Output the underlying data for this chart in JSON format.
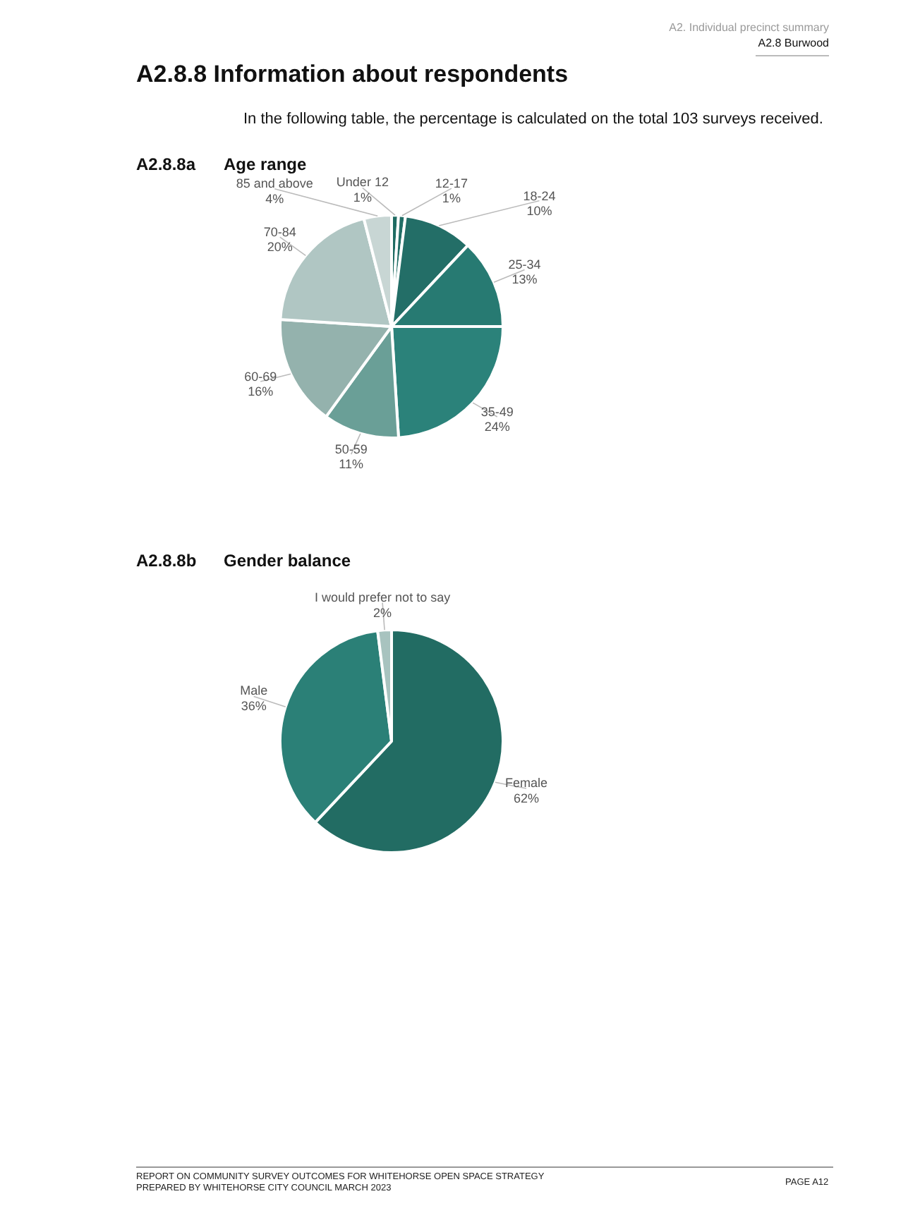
{
  "chart_data": [
    {
      "type": "pie",
      "title": "A2.8.8a Age range",
      "annotations": [
        "A2. Individual precinct summary",
        "A2.8 Burwood",
        "A2.8.8 Information about respondents",
        "In the following table, the percentage is calculated on the total 103 surveys received."
      ],
      "categories": [
        "Under 12",
        "12-17",
        "18-24",
        "25-34",
        "35-49",
        "50-59",
        "60-69",
        "70-84",
        "85 and above"
      ],
      "values": [
        1,
        1,
        10,
        13,
        24,
        11,
        16,
        20,
        4
      ],
      "colors": [
        "#1f6b62",
        "#226e66",
        "#236e67",
        "#277a72",
        "#2b827a",
        "#6a9f97",
        "#94b2ad",
        "#b0c6c3",
        "#c8d6d4"
      ],
      "value_labels": [
        "1%",
        "1%",
        "10%",
        "13%",
        "24%",
        "11%",
        "16%",
        "20%",
        "4%"
      ]
    },
    {
      "type": "pie",
      "title": "A2.8.8b Gender balance",
      "annotations": [
        "REPORT ON COMMUNITY SURVEY OUTCOMES FOR WHITEHORSE OPEN SPACE STRATEGY",
        "PREPARED BY WHITEHORSE CITY COUNCIL MARCH 2023",
        "PAGE A12"
      ],
      "categories": [
        "Female",
        "Male",
        "I would prefer not to say"
      ],
      "values": [
        62,
        36,
        2
      ],
      "colors": [
        "#226c63",
        "#2b8077",
        "#a8c3bf"
      ],
      "value_labels": [
        "62%",
        "36%",
        "2%"
      ]
    }
  ]
}
